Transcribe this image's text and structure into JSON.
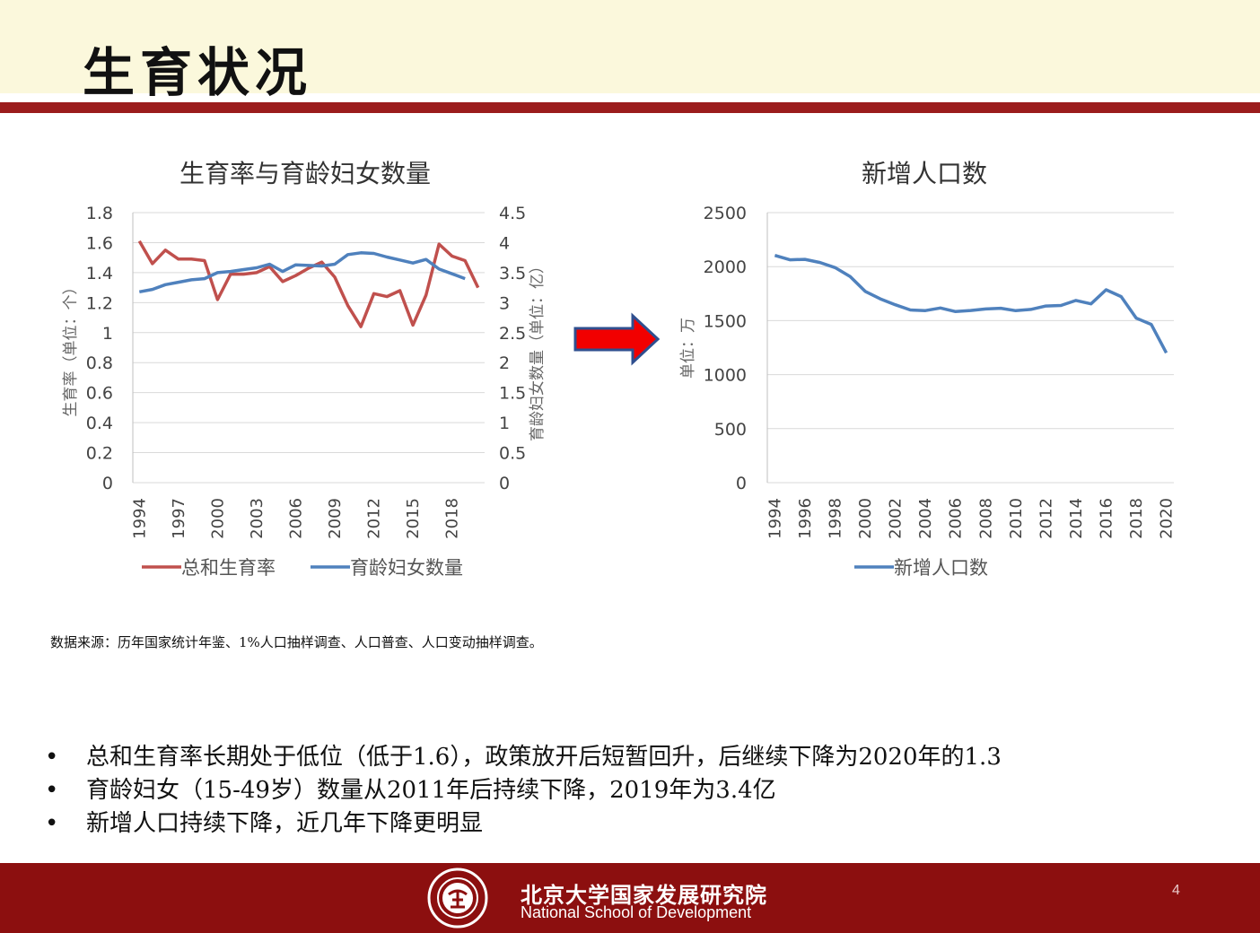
{
  "slide": {
    "title": "生育状况",
    "source": "数据来源：历年国家统计年鉴、1%人口抽样调查、人口普查、人口变动抽样调查。",
    "bullets": [
      "总和生育率长期处于低位（低于1.6），政策放开后短暂回升，后继续下降为2020年的1.3",
      "育龄妇女（15-49岁）数量从2011年后持续下降，2019年为3.4亿",
      "新增人口持续下降，近几年下降更明显"
    ],
    "footer": {
      "org_cn": "北京大学国家发展研究院",
      "org_en": "National School of Development",
      "page": "4"
    },
    "arrow_icon": "right-arrow-icon",
    "colors": {
      "accent": "#9b1c1c",
      "footer": "#8c0f0f",
      "header_bg": "#fbf8dc",
      "red_series": "#c0504d",
      "blue_series": "#4f81bd"
    }
  },
  "chart_data": [
    {
      "type": "line",
      "title": "生育率与育龄妇女数量",
      "x": [
        1994,
        1995,
        1996,
        1997,
        1998,
        1999,
        2000,
        2001,
        2002,
        2003,
        2004,
        2005,
        2006,
        2007,
        2008,
        2009,
        2010,
        2011,
        2012,
        2013,
        2014,
        2015,
        2016,
        2017,
        2018,
        2019,
        2020
      ],
      "x_tick_labels": [
        "1994",
        "1997",
        "2000",
        "2003",
        "2006",
        "2009",
        "2012",
        "2015",
        "2018"
      ],
      "ylabel_left": "生育率（单位：个）",
      "ylabel_right": "育龄妇女数量（单位：亿）",
      "ylim_left": [
        0,
        1.8
      ],
      "ylim_right": [
        0,
        4.5
      ],
      "y_ticks_left": [
        "0",
        "0.2",
        "0.4",
        "0.6",
        "0.8",
        "1",
        "1.2",
        "1.4",
        "1.6",
        "1.8"
      ],
      "y_ticks_right": [
        "0",
        "0.5",
        "1",
        "1.5",
        "2",
        "2.5",
        "3",
        "3.5",
        "4",
        "4.5"
      ],
      "grid": true,
      "legend_position": "bottom",
      "series": [
        {
          "name": "总和生育率",
          "axis": "left",
          "color": "#c0504d",
          "x": [
            1994,
            1995,
            1996,
            1997,
            1998,
            1999,
            2000,
            2001,
            2002,
            2003,
            2004,
            2005,
            2006,
            2007,
            2008,
            2009,
            2010,
            2011,
            2012,
            2013,
            2014,
            2015,
            2016,
            2017,
            2018,
            2019,
            2020
          ],
          "values": [
            1.61,
            1.46,
            1.55,
            1.49,
            1.49,
            1.48,
            1.22,
            1.39,
            1.39,
            1.4,
            1.44,
            1.34,
            1.38,
            1.43,
            1.47,
            1.37,
            1.18,
            1.04,
            1.26,
            1.24,
            1.28,
            1.05,
            1.25,
            1.59,
            1.51,
            1.48,
            1.3
          ]
        },
        {
          "name": "育龄妇女数量",
          "axis": "right",
          "color": "#4f81bd",
          "x": [
            1994,
            1995,
            1996,
            1997,
            1998,
            1999,
            2000,
            2001,
            2002,
            2003,
            2004,
            2005,
            2006,
            2007,
            2008,
            2009,
            2010,
            2011,
            2012,
            2013,
            2014,
            2015,
            2016,
            2017,
            2018,
            2019
          ],
          "values": [
            3.18,
            3.22,
            3.3,
            3.34,
            3.38,
            3.4,
            3.5,
            3.52,
            3.55,
            3.58,
            3.64,
            3.52,
            3.63,
            3.62,
            3.61,
            3.64,
            3.8,
            3.83,
            3.82,
            3.76,
            3.71,
            3.66,
            3.72,
            3.56,
            3.48,
            3.4
          ]
        }
      ]
    },
    {
      "type": "line",
      "title": "新增人口数",
      "x": [
        1994,
        1995,
        1996,
        1997,
        1998,
        1999,
        2000,
        2001,
        2002,
        2003,
        2004,
        2005,
        2006,
        2007,
        2008,
        2009,
        2010,
        2011,
        2012,
        2013,
        2014,
        2015,
        2016,
        2017,
        2018,
        2019,
        2020
      ],
      "x_tick_labels": [
        "1994",
        "1996",
        "1998",
        "2000",
        "2002",
        "2004",
        "2006",
        "2008",
        "2010",
        "2012",
        "2014",
        "2016",
        "2018",
        "2020"
      ],
      "ylabel": "单位：万",
      "ylim": [
        0,
        2500
      ],
      "y_ticks": [
        "0",
        "500",
        "1000",
        "1500",
        "2000",
        "2500"
      ],
      "grid": true,
      "legend_position": "bottom",
      "series": [
        {
          "name": "新增人口数",
          "color": "#4f81bd",
          "values": [
            2104,
            2063,
            2067,
            2038,
            1991,
            1909,
            1771,
            1702,
            1647,
            1599,
            1593,
            1617,
            1584,
            1594,
            1608,
            1615,
            1592,
            1604,
            1635,
            1640,
            1687,
            1655,
            1786,
            1723,
            1523,
            1465,
            1202
          ]
        }
      ]
    }
  ]
}
